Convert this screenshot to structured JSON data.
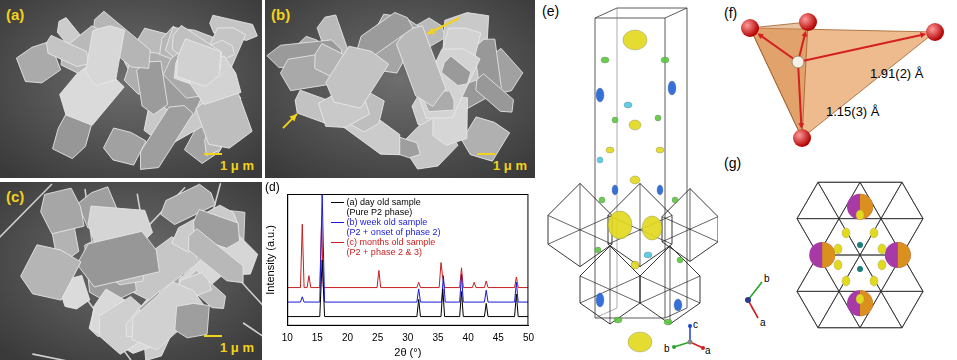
{
  "panels": {
    "a": {
      "label": "(a)",
      "scale_bar": "1 μ m"
    },
    "b": {
      "label": "(b)",
      "scale_bar": "1 μ m"
    },
    "c": {
      "label": "(c)",
      "scale_bar": "1 μ m"
    },
    "d": {
      "label": "(d)"
    },
    "e": {
      "label": "(e)",
      "axes": [
        "c",
        "b",
        "a"
      ]
    },
    "f": {
      "label": "(f)",
      "distances": [
        "1.91(2) Å",
        "1.15(3) Å"
      ]
    },
    "g": {
      "label": "(g)",
      "axes": [
        "b",
        "a"
      ]
    }
  },
  "chart_data": {
    "type": "line",
    "x_label": "2θ (°)",
    "y_label": "Intensity (a.u.)",
    "xlim": [
      10,
      50
    ],
    "xticks": [
      10,
      15,
      20,
      25,
      30,
      35,
      40,
      45,
      50
    ],
    "ylim": [
      0,
      100
    ],
    "tick_labels": "x",
    "grid": false,
    "legend": "upper left",
    "series": [
      {
        "name": "(a) day old sample (Pure P2 phase)",
        "color": "#000000",
        "x": [
          10,
          15.4,
          15.8,
          16.2,
          31.5,
          31.8,
          32.1,
          35.5,
          35.8,
          36.1,
          38.6,
          38.9,
          39.2,
          42.7,
          43.0,
          43.3,
          47.7,
          48.0,
          48.3,
          50
        ],
        "values": [
          7,
          7,
          50,
          7,
          7,
          20,
          7,
          7,
          28,
          7,
          7,
          26,
          7,
          7,
          17,
          7,
          7,
          24,
          7,
          7
        ]
      },
      {
        "name": "(b) week old sample (P2 + onset of phase 2)",
        "color": "#1a1ad6",
        "x": [
          10,
          12.2,
          12.5,
          12.8,
          15.4,
          15.8,
          16.2,
          31.5,
          31.8,
          32.1,
          35.6,
          35.9,
          36.2,
          38.6,
          38.9,
          39.2,
          42.7,
          43.0,
          43.3,
          47.7,
          48.0,
          48.3,
          50
        ],
        "values": [
          18,
          18,
          22,
          18,
          18,
          100,
          18,
          18,
          28,
          18,
          18,
          38,
          18,
          18,
          39,
          18,
          18,
          27,
          18,
          18,
          33,
          18,
          18
        ]
      },
      {
        "name": "(c) months old sample (P2 + phase 2 & 3)",
        "color": "#c81e1e",
        "x": [
          10,
          12.2,
          12.5,
          12.8,
          13.3,
          13.6,
          13.9,
          15.4,
          15.7,
          16.0,
          24.9,
          25.2,
          25.5,
          31.5,
          31.8,
          32.1,
          35.2,
          35.5,
          35.8,
          36.1,
          38.6,
          38.9,
          39.2,
          40.7,
          41.0,
          41.3,
          42.7,
          43.0,
          43.3,
          47.7,
          48.0,
          48.3,
          50
        ],
        "values": [
          29,
          29,
          77,
          29,
          29,
          38,
          29,
          29,
          78,
          29,
          29,
          42,
          29,
          29,
          33,
          29,
          29,
          48,
          36,
          29,
          29,
          44,
          29,
          29,
          33,
          29,
          29,
          34,
          29,
          29,
          37,
          29,
          29
        ]
      }
    ]
  }
}
